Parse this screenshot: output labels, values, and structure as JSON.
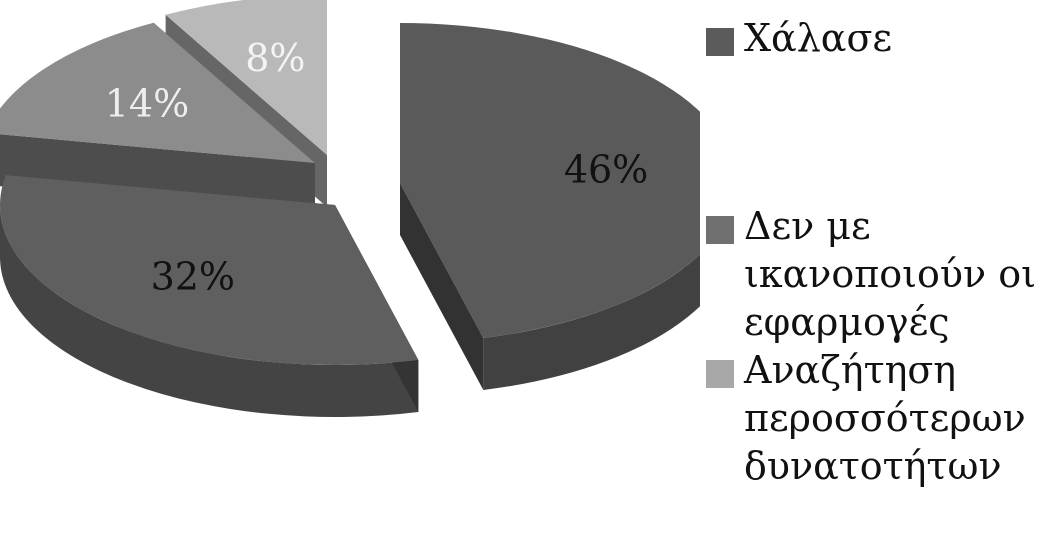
{
  "chart_data": {
    "type": "pie",
    "title": "",
    "style": "3d-exploded",
    "slices": [
      {
        "label": "Χάλασε",
        "value": 46,
        "display": "46%",
        "color": "#5a5a5a"
      },
      {
        "label": "",
        "value": 32,
        "display": "32%",
        "color": "#5f5f5f"
      },
      {
        "label": "",
        "value": 14,
        "display": "14%",
        "color": "#8c8c8c"
      },
      {
        "label": "",
        "value": 8,
        "display": "8%",
        "color": "#b9b9b9"
      }
    ],
    "legend": {
      "placement": "right",
      "entries": [
        {
          "label": "Χάλασε",
          "color": "#5a5a5a"
        },
        {
          "label": "Δεν με ικανοποιούν οι εφαρμογές",
          "color": "#707070"
        },
        {
          "label": "Αναζήτηση περοσσότερων δυνατοτήτων",
          "color": "#a8a8a8"
        }
      ]
    }
  }
}
